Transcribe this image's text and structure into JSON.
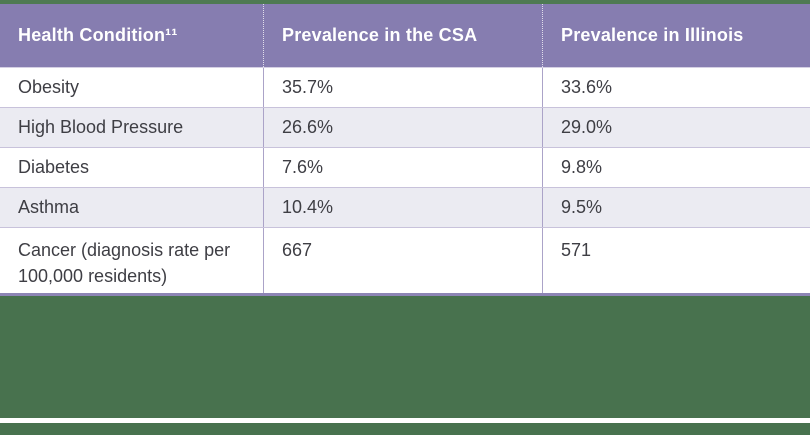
{
  "table": {
    "headers": {
      "condition": "Health Condition¹¹",
      "csa": "Prevalence in the CSA",
      "illinois": "Prevalence in Illinois"
    },
    "rows": [
      {
        "condition": "Obesity",
        "csa": "35.7%",
        "illinois": "33.6%"
      },
      {
        "condition": "High Blood Pressure",
        "csa": "26.6%",
        "illinois": "29.0%"
      },
      {
        "condition": "Diabetes",
        "csa": "7.6%",
        "illinois": "9.8%"
      },
      {
        "condition": "Asthma",
        "csa": "10.4%",
        "illinois": "9.5%"
      },
      {
        "condition": "Cancer (diagnosis rate per 100,000 residents)",
        "csa": "667",
        "illinois": "571"
      }
    ]
  },
  "colors": {
    "header_purple": "#867DB0",
    "alt_row": "#EBEBF2",
    "column_divider": "#ABA3C8",
    "row_divider": "#C8C2DB",
    "table_bottom_border": "#8D85B5",
    "green": "#48724E",
    "top_bar_green": "#4E7A52",
    "body_text": "#3E3E44",
    "header_text": "#FFFFFF"
  }
}
